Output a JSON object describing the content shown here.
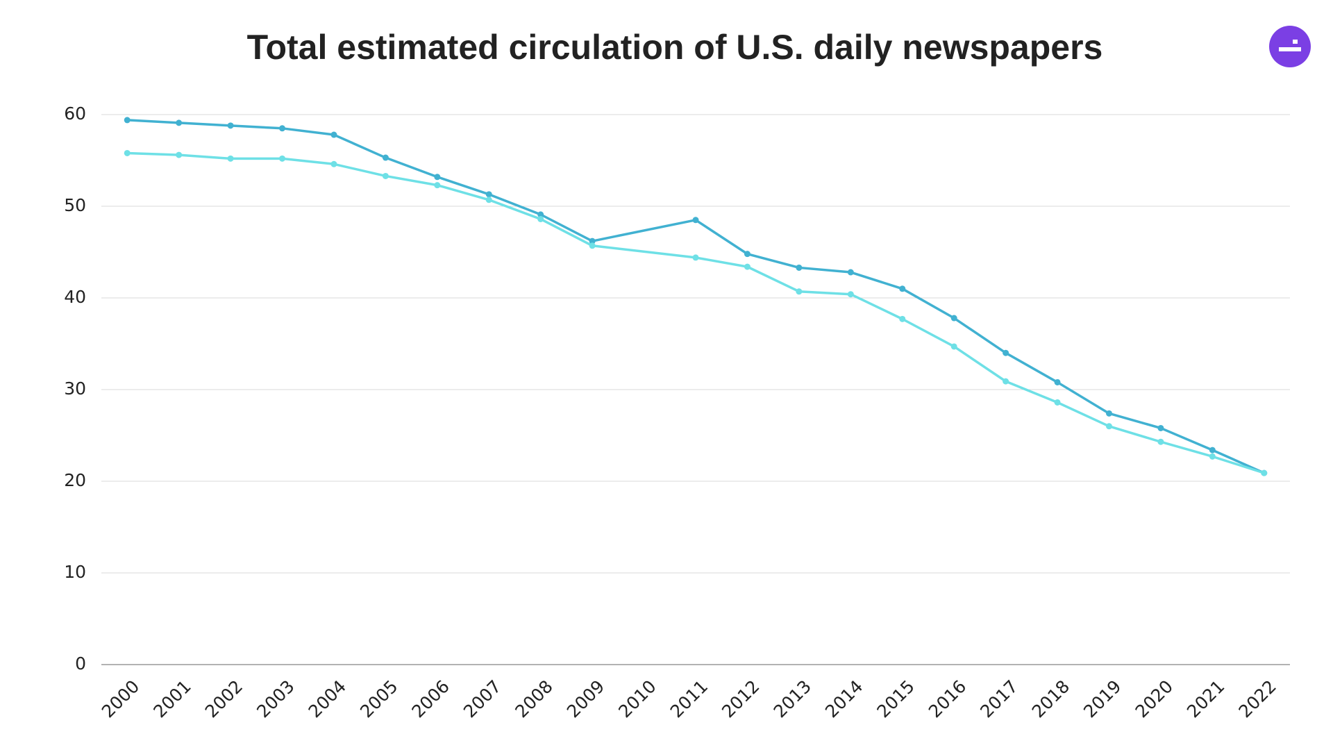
{
  "chart_data": {
    "type": "line",
    "title": "Total estimated circulation of U.S. daily newspapers",
    "x": [
      2000,
      2001,
      2002,
      2003,
      2004,
      2005,
      2006,
      2007,
      2008,
      2009,
      2011,
      2012,
      2013,
      2014,
      2015,
      2016,
      2017,
      2018,
      2019,
      2020,
      2021,
      2022
    ],
    "series": [
      {
        "color": "#41b1d1",
        "values": [
          59.4,
          59.1,
          58.8,
          58.5,
          57.8,
          55.3,
          53.2,
          51.3,
          49.1,
          46.2,
          48.5,
          44.8,
          43.3,
          42.8,
          41.0,
          37.8,
          34.0,
          30.8,
          27.4,
          25.8,
          23.4,
          20.9
        ]
      },
      {
        "color": "#6ee0e6",
        "values": [
          55.8,
          55.6,
          55.2,
          55.2,
          54.6,
          53.3,
          52.3,
          50.7,
          48.6,
          45.7,
          44.4,
          43.4,
          40.7,
          40.4,
          37.7,
          34.7,
          30.9,
          28.6,
          26.0,
          24.3,
          22.7,
          20.9
        ]
      }
    ],
    "xlim": [
      1999.5,
      2022.5
    ],
    "xticks": [
      2000,
      2001,
      2002,
      2003,
      2004,
      2005,
      2006,
      2007,
      2008,
      2009,
      2010,
      2011,
      2012,
      2013,
      2014,
      2015,
      2016,
      2017,
      2018,
      2019,
      2020,
      2021,
      2022
    ],
    "ylim": [
      0,
      60
    ],
    "yticks": [
      0,
      10,
      20,
      30,
      40,
      50,
      60
    ],
    "grid": true
  }
}
